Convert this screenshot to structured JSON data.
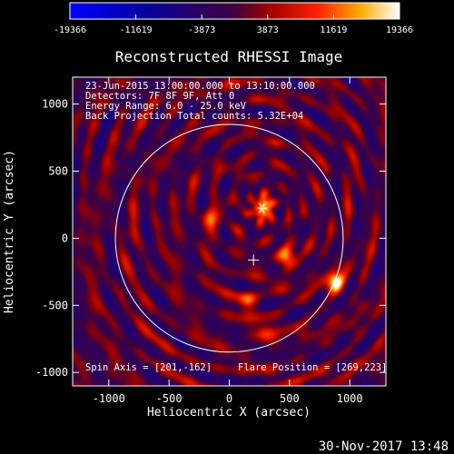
{
  "chart_data": {
    "type": "heatmap",
    "title": "Reconstructed RHESSI Image",
    "xlabel": "Heliocentric X (arcsec)",
    "ylabel": "Heliocentric Y (arcsec)",
    "xlim": [
      -1300,
      1300
    ],
    "ylim": [
      -1100,
      1200
    ],
    "x_ticks": [
      -1000,
      -500,
      0,
      500,
      1000
    ],
    "y_ticks": [
      -1000,
      -500,
      0,
      500,
      1000
    ],
    "colorbar": {
      "min": -19366,
      "max": 19366,
      "tick_labels": [
        "-19366",
        "-11619",
        "-3873",
        "3873",
        "11619",
        "19366"
      ]
    },
    "info_lines": [
      "23-Jun-2015 13:00:00.000 to 13:10:00.000",
      "Detectors: 7F 8F 9F, Att 0",
      "Energy Range: 6.0 - 25.0 keV",
      "Back Projection    Total counts: 5.32E+04"
    ],
    "spin_axis_text": "Spin Axis = [201,-162]",
    "flare_position_text": "Flare Position = [269,223]",
    "spin_axis": [
      201,
      -162
    ],
    "limb": {
      "center": [
        0,
        0
      ],
      "radius_arcsec": 945
    },
    "sources": [
      {
        "x": 280,
        "y": 230,
        "peak": 19366
      },
      {
        "x": 880,
        "y": -320,
        "peak": 17500
      },
      {
        "x": 480,
        "y": -150,
        "peak": 13000
      },
      {
        "x": 150,
        "y": -470,
        "peak": 11500
      },
      {
        "x": -150,
        "y": 150,
        "peak": 9500
      },
      {
        "x": 300,
        "y": -700,
        "peak": 8500
      }
    ],
    "timestamp": "30-Nov-2017 13:48"
  }
}
